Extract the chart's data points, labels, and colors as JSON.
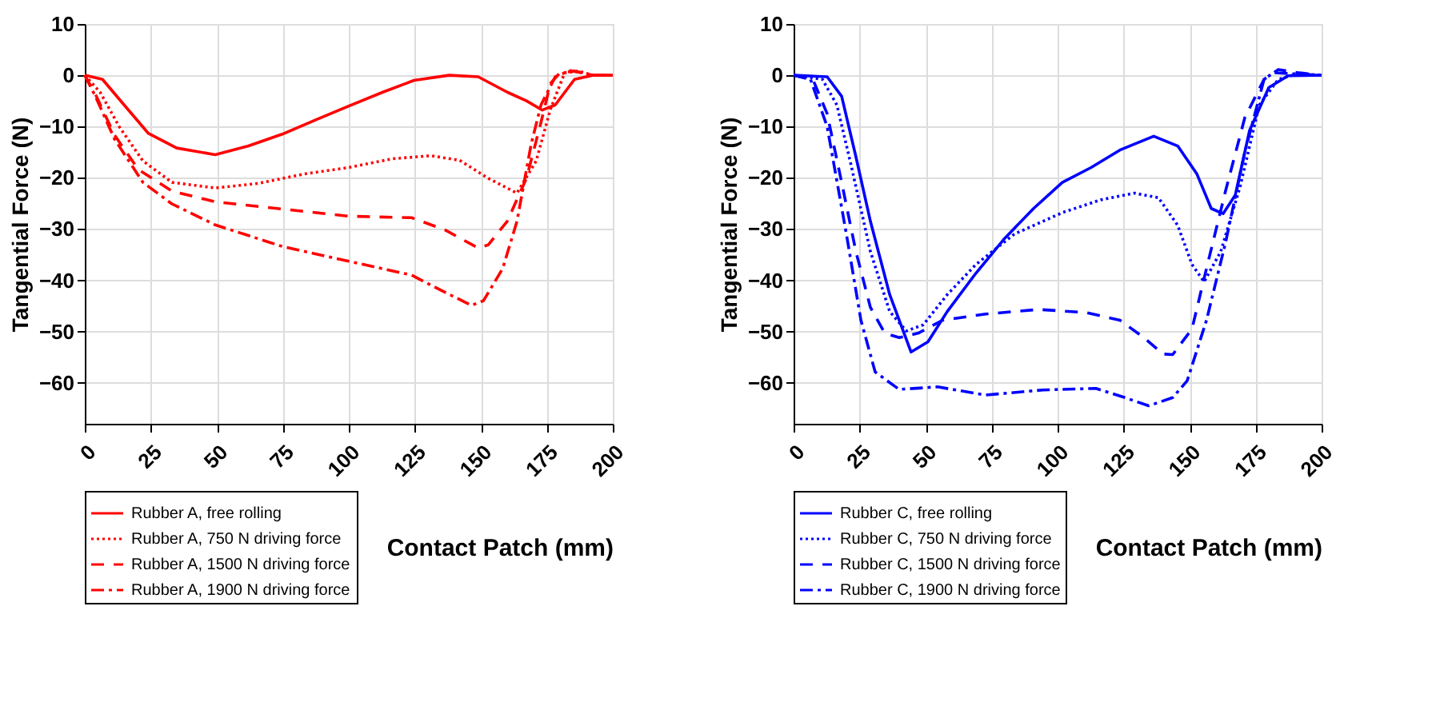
{
  "chart_data": [
    {
      "type": "line",
      "xlabel": "Contact Patch (mm)",
      "ylabel": "Tangential Force (N)",
      "xlim": [
        0,
        200
      ],
      "xticks": [
        0,
        25,
        50,
        75,
        100,
        125,
        150,
        175,
        200
      ],
      "ylim": [
        -68,
        10
      ],
      "yticks": [
        -60,
        -50,
        -40,
        -30,
        -20,
        -10,
        0,
        10
      ],
      "grid": true,
      "legend": "bottom left",
      "marker": "none",
      "series": [
        {
          "name": "Rubber A, free rolling",
          "color": "#ff0000",
          "line_style": "solid",
          "x": [
            0,
            6.7,
            14.9,
            24,
            34.8,
            49.4,
            62,
            74.8,
            87.5,
            100,
            112.9,
            124.7,
            138,
            149,
            160,
            167.3,
            173.3,
            178.2,
            185.5,
            192.7,
            200
          ],
          "values": [
            0,
            -0.8,
            -5.8,
            -11.3,
            -14.2,
            -15.5,
            -13.8,
            -11.5,
            -8.7,
            -6,
            -3.3,
            -1,
            0,
            -0.3,
            -3.3,
            -5,
            -6.8,
            -5.8,
            -0.8,
            0,
            0
          ]
        },
        {
          "name": "Rubber A,  750 N driving force",
          "color": "#ff0000",
          "line_style": "dotted",
          "x": [
            0,
            5.8,
            13,
            22,
            33,
            49.4,
            65.7,
            83.8,
            100,
            116.5,
            131,
            142,
            152.8,
            163.7,
            171,
            176.4,
            181.8,
            187,
            192.7,
            200
          ],
          "values": [
            0,
            -3.3,
            -10,
            -16.7,
            -20.9,
            -22,
            -21.1,
            -19.2,
            -18,
            -16.3,
            -15.7,
            -16.6,
            -20.1,
            -23,
            -16.7,
            -6.6,
            0.5,
            0.8,
            0,
            0
          ]
        },
        {
          "name": "Rubber A, 1500 N driving force",
          "color": "#ff0000",
          "line_style": "dashed",
          "x": [
            0,
            4,
            11.3,
            20.3,
            33,
            49.4,
            74.8,
            100,
            123.8,
            136.5,
            149,
            152.8,
            160,
            167.3,
            172.8,
            176.4,
            180,
            185.5,
            192.7,
            200
          ],
          "values": [
            0,
            -3.7,
            -11.7,
            -18.4,
            -22.6,
            -24.7,
            -26.1,
            -27.5,
            -27.8,
            -30.2,
            -33.7,
            -33.1,
            -28.5,
            -20.1,
            -9.2,
            -1.6,
            0.5,
            0.8,
            0,
            0
          ]
        },
        {
          "name": "Rubber A, 1900 N driving force",
          "color": "#ff0000",
          "line_style": "dashdot",
          "x": [
            0,
            4,
            11.3,
            22,
            33,
            49.4,
            74.8,
            100,
            123.8,
            134.7,
            146.5,
            151,
            158.3,
            163.7,
            169.1,
            172.8,
            178.2,
            183.7,
            192.7,
            200
          ],
          "values": [
            0,
            -4.1,
            -12.5,
            -20.9,
            -25.1,
            -29.2,
            -33.4,
            -36.3,
            -39,
            -41.9,
            -44.9,
            -44,
            -37.7,
            -28.5,
            -13.4,
            -5.8,
            -0.3,
            0.9,
            0,
            0
          ]
        }
      ]
    },
    {
      "type": "line",
      "xlabel": "Contact Patch (mm)",
      "ylabel": "Tangential Force (N)",
      "xlim": [
        0,
        200
      ],
      "xticks": [
        0,
        25,
        50,
        75,
        100,
        125,
        150,
        175,
        200
      ],
      "ylim": [
        -68,
        10
      ],
      "yticks": [
        -60,
        -50,
        -40,
        -30,
        -20,
        -10,
        0,
        10
      ],
      "grid": true,
      "legend": "bottom left",
      "marker": "none",
      "series": [
        {
          "name": "Rubber C, free rolling",
          "color": "#0000ff",
          "line_style": "solid",
          "x": [
            0,
            12.7,
            18.2,
            23.6,
            29.1,
            36.4,
            44.5,
            50.9,
            58.2,
            69.1,
            80,
            90.9,
            101.8,
            112.7,
            123.6,
            136.4,
            145.5,
            152.7,
            158.2,
            162.7,
            167.3,
            172.7,
            180,
            187.3,
            198,
            200
          ],
          "values": [
            0,
            -0.3,
            -4.1,
            -15.9,
            -28.5,
            -42.8,
            -54,
            -52,
            -46.1,
            -38.6,
            -31.8,
            -26,
            -20.9,
            -18,
            -14.6,
            -11.9,
            -13.8,
            -19.2,
            -26,
            -27,
            -23.4,
            -10.8,
            -2.4,
            -0.1,
            0,
            0
          ]
        },
        {
          "name": "Rubber C,  750 N driving force",
          "color": "#0000ff",
          "line_style": "dotted",
          "x": [
            0,
            10.9,
            16.4,
            21.8,
            29.1,
            36.4,
            42.7,
            49.1,
            58.2,
            69.1,
            83.6,
            101.8,
            116.4,
            129.1,
            138.2,
            145.5,
            150.9,
            155.5,
            161.8,
            169.1,
            176.4,
            183.6,
            190.9,
            200
          ],
          "values": [
            0,
            -0.8,
            -5.8,
            -17.6,
            -34.4,
            -46.1,
            -49.9,
            -48.7,
            -42.8,
            -36.9,
            -31,
            -26.8,
            -24.3,
            -23,
            -23.9,
            -29.3,
            -36.9,
            -40.3,
            -34.4,
            -21.8,
            -5.8,
            -0.8,
            0.3,
            0
          ]
        },
        {
          "name": "Rubber C, 1500 N driving force",
          "color": "#0000ff",
          "line_style": "dashed",
          "x": [
            0,
            7.3,
            12.7,
            18.2,
            23.6,
            29.1,
            34.5,
            40,
            47.3,
            56.4,
            72.7,
            92.7,
            110.9,
            123.6,
            132.7,
            140,
            143.6,
            150.9,
            156.4,
            163.6,
            170.9,
            178.2,
            183.6,
            190.9,
            200
          ],
          "values": [
            0,
            -0.8,
            -7.5,
            -20.9,
            -34.4,
            -45.3,
            -50.3,
            -51.2,
            -50.3,
            -47.8,
            -46.6,
            -45.7,
            -46.3,
            -47.8,
            -51.2,
            -54.4,
            -54.5,
            -49.5,
            -37.7,
            -22.6,
            -8.3,
            -0.8,
            1.1,
            0.5,
            0
          ]
        },
        {
          "name": "Rubber C, 1900 N driving force",
          "color": "#0000ff",
          "line_style": "dashdot",
          "x": [
            0,
            6.4,
            12.7,
            20,
            25.5,
            30.9,
            40,
            54.5,
            72.7,
            94.5,
            114.5,
            125.5,
            134.5,
            143.6,
            149.1,
            156.4,
            163.6,
            170.9,
            178.2,
            181.8,
            189,
            200
          ],
          "values": [
            0,
            -0.8,
            -10,
            -31,
            -47.8,
            -57.9,
            -61.3,
            -60.8,
            -62.4,
            -61.4,
            -61.1,
            -62.9,
            -64.5,
            -62.9,
            -59.6,
            -47.8,
            -32.7,
            -15,
            -0.8,
            0.5,
            0.3,
            0
          ]
        }
      ]
    }
  ]
}
